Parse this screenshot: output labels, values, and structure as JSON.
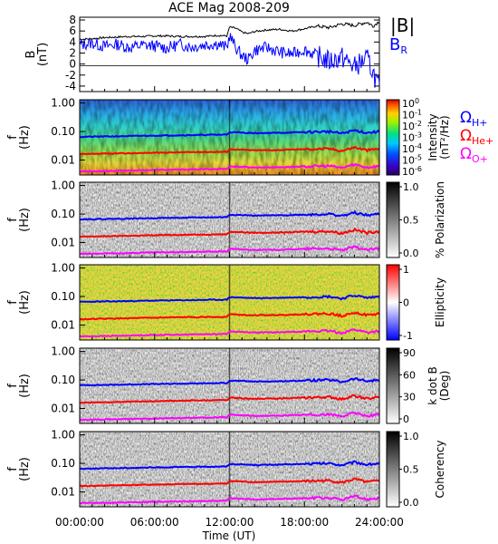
{
  "title": "ACE Mag 2008-209",
  "x_axis": {
    "label": "Time (UT)",
    "ticks": [
      "00:00:00",
      "06:00:00",
      "12:00:00",
      "18:00:00",
      "24:00:00"
    ],
    "range_hours": [
      0,
      24
    ]
  },
  "colors": {
    "B_total": "#000000",
    "B_R": "#0000ff",
    "H_plus": "#0000ff",
    "He_plus": "#ff0000",
    "O_plus": "#ff00ff"
  },
  "chart_data": [
    {
      "type": "line",
      "panel": "field",
      "ylabel": "B",
      "yunit": "(nT)",
      "ylim": [
        -5,
        8.5
      ],
      "yticks": [
        "8",
        "6",
        "4",
        "2",
        "0",
        "-2",
        "-4"
      ],
      "legend": {
        "total": "|B|",
        "radial_main": "B",
        "radial_sub": "R"
      },
      "series": [
        {
          "name": "|B|",
          "x": [
            0,
            1,
            2,
            3,
            4,
            5,
            6,
            7,
            8,
            9,
            10,
            11,
            11.8,
            12,
            12.5,
            13,
            13.5,
            14,
            15,
            16,
            17,
            18,
            19,
            20,
            21,
            22,
            23,
            23.5,
            24
          ],
          "values": [
            4.5,
            4.6,
            4.8,
            4.9,
            5.0,
            5.0,
            5.1,
            5.1,
            5.0,
            5.0,
            5.0,
            5.2,
            5.1,
            6.7,
            6.5,
            5.8,
            5.5,
            5.9,
            6.2,
            6.3,
            6.0,
            6.4,
            6.9,
            6.6,
            7.3,
            7.0,
            7.6,
            6.9,
            7.8
          ]
        },
        {
          "name": "B",
          "x": [
            0,
            1,
            2,
            3,
            4,
            5,
            6,
            7,
            8,
            9,
            10,
            11,
            11.8,
            12,
            12.5,
            13,
            13.5,
            14,
            15,
            16,
            17,
            18,
            19,
            20,
            21,
            22,
            23,
            23.5,
            24
          ],
          "values": [
            3.5,
            3.8,
            3.2,
            3.6,
            3.0,
            3.4,
            3.3,
            2.9,
            3.6,
            3.1,
            3.5,
            3.7,
            3.0,
            5.2,
            3.0,
            1.5,
            0.8,
            2.5,
            3.0,
            2.2,
            1.8,
            2.6,
            1.5,
            0.5,
            1.2,
            -0.5,
            1.0,
            -1.5,
            -4.5
          ]
        }
      ]
    },
    {
      "type": "heatmap",
      "panel": "intensity",
      "ylabel": "f",
      "yunit": "(Hz)",
      "yscale": "log",
      "ylim": [
        0.003,
        1.0
      ],
      "yticks": [
        "1.00",
        "0.10",
        "0.01"
      ],
      "colorbar": {
        "label": "Intensity",
        "unit": "(nT²/Hz)",
        "ticks_exp": [
          "0",
          "-1",
          "-2",
          "-3",
          "-4",
          "-5",
          "-6"
        ],
        "range": [
          1e-06,
          1
        ]
      },
      "overlays": {
        "x": [
          0,
          3,
          6,
          9,
          11.8,
          12,
          14,
          16,
          18,
          20,
          21,
          22,
          23,
          24
        ],
        "H_plus": [
          0.065,
          0.068,
          0.072,
          0.075,
          0.078,
          0.095,
          0.088,
          0.09,
          0.095,
          0.1,
          0.085,
          0.11,
          0.09,
          0.1
        ],
        "He_plus": [
          0.016,
          0.017,
          0.018,
          0.019,
          0.0195,
          0.024,
          0.022,
          0.0225,
          0.024,
          0.025,
          0.021,
          0.028,
          0.022,
          0.025
        ],
        "O_plus": [
          0.004,
          0.0042,
          0.0045,
          0.0047,
          0.0049,
          0.006,
          0.0055,
          0.0056,
          0.006,
          0.0062,
          0.0053,
          0.007,
          0.0055,
          0.0062
        ]
      }
    },
    {
      "type": "heatmap",
      "panel": "polarization",
      "ylabel": "f",
      "yunit": "(Hz)",
      "yscale": "log",
      "yticks": [
        "1.00",
        "0.10",
        "0.01"
      ],
      "colorbar": {
        "label": "% Polarization",
        "ticks": [
          "1.0",
          "0.5",
          "0.0"
        ],
        "range": [
          0,
          1
        ]
      }
    },
    {
      "type": "heatmap",
      "panel": "ellipticity",
      "ylabel": "f",
      "yunit": "(Hz)",
      "yscale": "log",
      "yticks": [
        "1.00",
        "0.10",
        "0.01"
      ],
      "colorbar": {
        "label": "Ellipticity",
        "ticks": [
          "1",
          "0",
          "-1"
        ],
        "range": [
          -1,
          1
        ]
      }
    },
    {
      "type": "heatmap",
      "panel": "kdotb",
      "ylabel": "f",
      "yunit": "(Hz)",
      "yscale": "log",
      "yticks": [
        "1.00",
        "0.10",
        "0.01"
      ],
      "colorbar": {
        "label": "k dot B",
        "unit": "(Deg)",
        "ticks": [
          "90",
          "60",
          "30",
          "0"
        ],
        "range": [
          0,
          90
        ]
      }
    },
    {
      "type": "heatmap",
      "panel": "coherency",
      "ylabel": "f",
      "yunit": "(Hz)",
      "yscale": "log",
      "yticks": [
        "1.00",
        "0.10",
        "0.01"
      ],
      "colorbar": {
        "label": "Coherency",
        "ticks": [
          "1.0",
          "0.5",
          "0.0"
        ],
        "range": [
          0,
          1
        ]
      }
    }
  ],
  "legend_right": {
    "omega": "Ω",
    "h_sub": "H+",
    "he_sub": "He+",
    "o_sub": "O+"
  }
}
